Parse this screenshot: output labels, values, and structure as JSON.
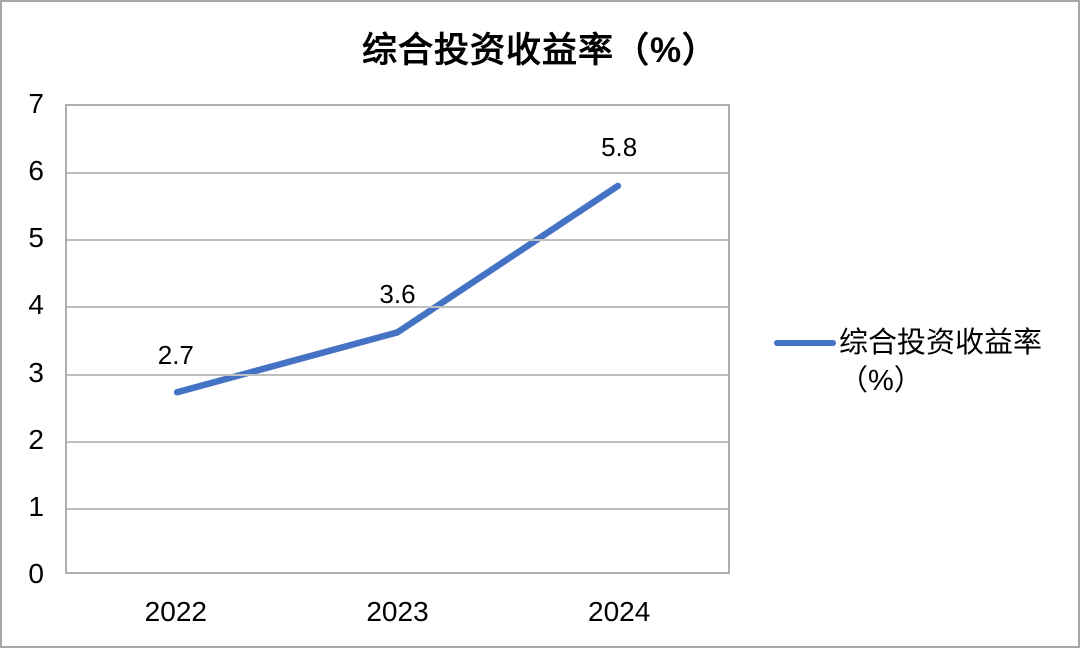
{
  "chart_data": {
    "type": "line",
    "title": "综合投资收益率（%）",
    "categories": [
      "2022",
      "2023",
      "2024"
    ],
    "series": [
      {
        "name": "综合投资收益率（%）",
        "values": [
          2.7,
          3.6,
          5.8
        ]
      }
    ],
    "labels": [
      "2.7",
      "3.6",
      "5.8"
    ],
    "xlabel": "",
    "ylabel": "",
    "ylim": [
      0,
      7
    ],
    "yticks": [
      "7",
      "6",
      "5",
      "4",
      "3",
      "2",
      "1",
      "0"
    ],
    "grid": "horizontal",
    "legend_position": "right",
    "colors": {
      "line": "#4472C4",
      "gridline": "#BFBFBF",
      "plot_border": "#AEAEAE",
      "text": "#000000",
      "frame_border": "#A6A6A6"
    }
  }
}
